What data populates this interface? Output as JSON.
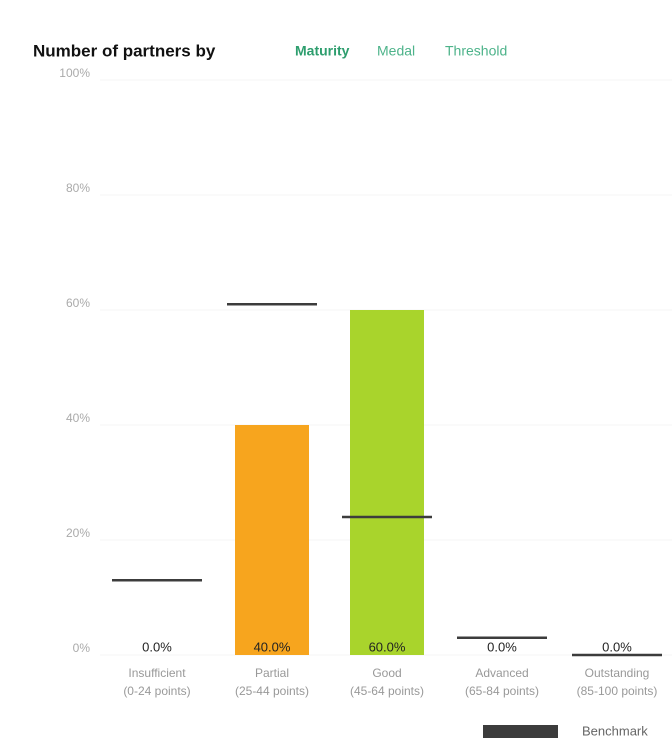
{
  "chart_data": {
    "type": "bar",
    "title": "Number of partners by",
    "tabs": [
      {
        "label": "Maturity",
        "active": true
      },
      {
        "label": "Medal",
        "active": false
      },
      {
        "label": "Threshold",
        "active": false
      }
    ],
    "categories": [
      "Insufficient",
      "Partial",
      "Good",
      "Advanced",
      "Outstanding"
    ],
    "category_ranges": [
      "(0-24 points)",
      "(25-44 points)",
      "(45-64 points)",
      "(65-84 points)",
      "(85-100 points)"
    ],
    "values": [
      0,
      40,
      60,
      0,
      0
    ],
    "value_labels": [
      "0.0%",
      "40.0%",
      "60.0%",
      "0.0%",
      "0.0%"
    ],
    "colors": [
      null,
      "#f7a51e",
      "#a9d42c",
      null,
      null
    ],
    "benchmark": {
      "name": "Benchmark",
      "color": "#3c3c3c",
      "values": [
        13,
        61,
        24,
        3,
        0
      ]
    },
    "ylim": [
      0,
      100
    ],
    "yticks": [
      {
        "value": 0,
        "label": "0%"
      },
      {
        "value": 20,
        "label": "20%"
      },
      {
        "value": 40,
        "label": "40%"
      },
      {
        "value": 60,
        "label": "60%"
      },
      {
        "value": 80,
        "label": "80%"
      },
      {
        "value": 100,
        "label": "100%"
      }
    ],
    "grid": true
  }
}
